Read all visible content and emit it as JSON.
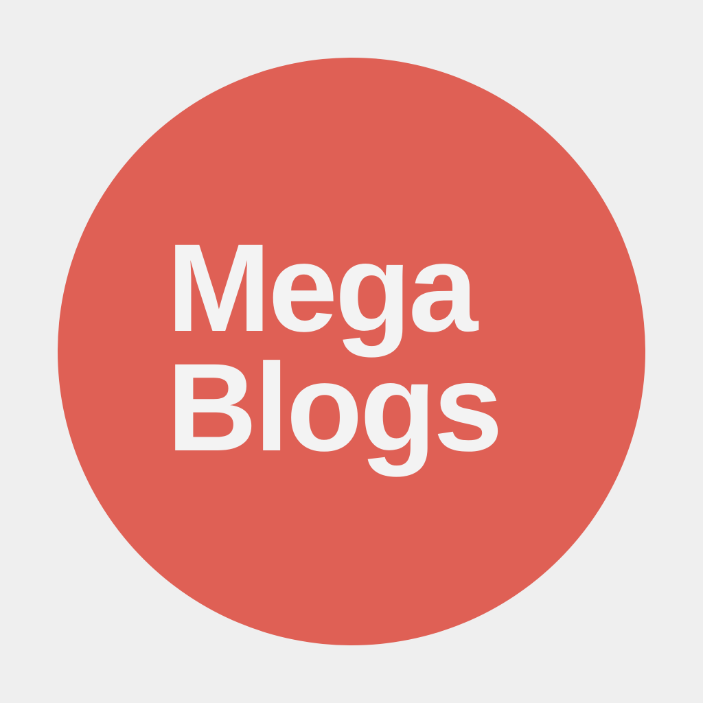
{
  "logo": {
    "line1": "Mega",
    "line2": "Blogs"
  },
  "colors": {
    "background": "#efefef",
    "circle": "#df6055",
    "text": "#f3f3f3"
  }
}
